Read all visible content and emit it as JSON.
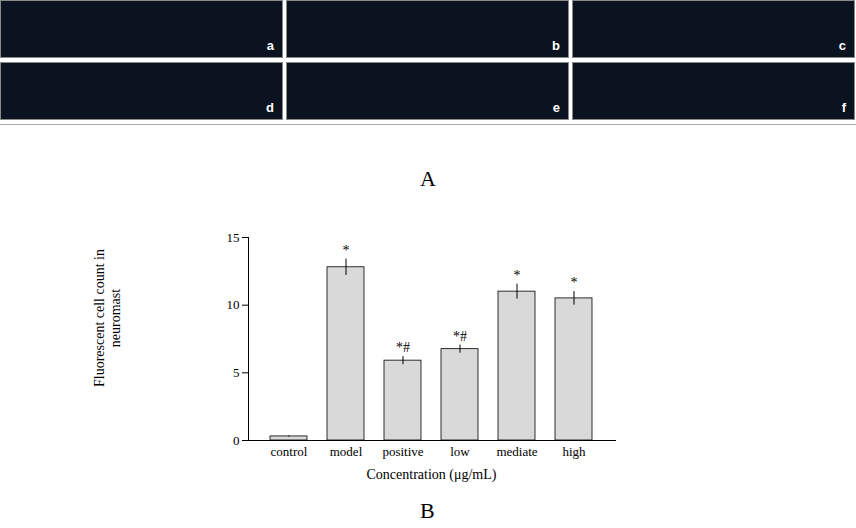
{
  "figure": {
    "panel_labels": [
      "A",
      "B"
    ],
    "image_labels": [
      "a",
      "b",
      "c",
      "d",
      "e",
      "f"
    ]
  },
  "chart_data": {
    "type": "bar",
    "categories": [
      "control",
      "model",
      "positive",
      "low",
      "mediate",
      "high"
    ],
    "values": [
      0.3,
      12.8,
      5.9,
      6.75,
      11.0,
      10.5
    ],
    "errors": [
      0.05,
      0.6,
      0.3,
      0.3,
      0.55,
      0.5
    ],
    "annotations": [
      null,
      "*",
      "*#",
      "*#",
      "*",
      "*"
    ],
    "color": "#d9d9d9",
    "x_label": "Concentration (μg/mL)",
    "y_label": "Fluorescent cell count in neuromast",
    "ylim": [
      0,
      15
    ],
    "yticks": [
      0,
      5,
      10,
      15
    ],
    "grid": false
  }
}
